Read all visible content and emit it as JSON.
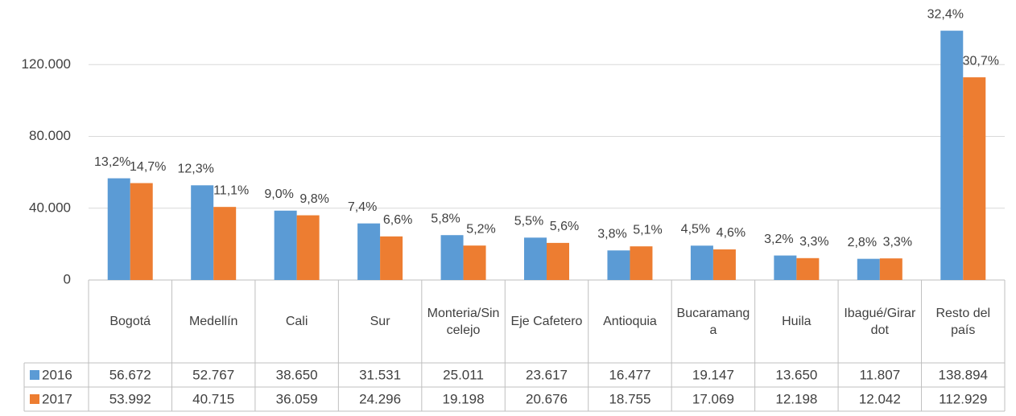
{
  "chart_data": {
    "type": "bar",
    "categories": [
      "Bogotá",
      "Medellín",
      "Cali",
      "Sur",
      "Monteria/Sincelejo",
      "Eje Cafetero",
      "Antioquia",
      "Bucaramanga",
      "Huila",
      "Ibagué/Girardot",
      "Resto del país"
    ],
    "series": [
      {
        "name": "2016",
        "color": "#5b9bd5",
        "values": [
          56672,
          52767,
          38650,
          31531,
          25011,
          23617,
          16477,
          19147,
          13650,
          11807,
          138894
        ],
        "value_labels": [
          "56.672",
          "52.767",
          "38.650",
          "31.531",
          "25.011",
          "23.617",
          "16.477",
          "19.147",
          "13.650",
          "11.807",
          "138.894"
        ],
        "shares": [
          13.2,
          12.3,
          9.0,
          7.4,
          5.8,
          5.5,
          3.8,
          4.5,
          3.2,
          2.8,
          32.4
        ],
        "share_labels": [
          "13,2%",
          "12,3%",
          "9,0%",
          "7,4%",
          "5,8%",
          "5,5%",
          "3,8%",
          "4,5%",
          "3,2%",
          "2,8%",
          "32,4%"
        ]
      },
      {
        "name": "2017",
        "color": "#ed7d31",
        "values": [
          53992,
          40715,
          36059,
          24296,
          19198,
          20676,
          18755,
          17069,
          12198,
          12042,
          112929
        ],
        "value_labels": [
          "53.992",
          "40.715",
          "36.059",
          "24.296",
          "19.198",
          "20.676",
          "18.755",
          "17.069",
          "12.198",
          "12.042",
          "112.929"
        ],
        "shares": [
          14.7,
          11.1,
          9.8,
          6.6,
          5.2,
          5.6,
          5.1,
          4.6,
          3.3,
          3.3,
          30.7
        ],
        "share_labels": [
          "14,7%",
          "11,1%",
          "9,8%",
          "6,6%",
          "5,2%",
          "5,6%",
          "5,1%",
          "4,6%",
          "3,3%",
          "3,3%",
          "30,7%"
        ]
      }
    ],
    "ylim": [
      0,
      156000
    ],
    "yticks": [
      0,
      {
        "value": 40000,
        "label": "40.000"
      },
      {
        "value": 80000,
        "label": "80.000"
      },
      {
        "value": 120000,
        "label": "120.000"
      }
    ],
    "grid": true
  }
}
